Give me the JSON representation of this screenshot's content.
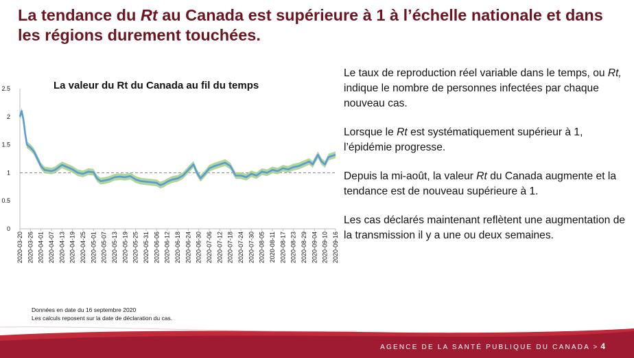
{
  "slide": {
    "title_pre": "La tendance du ",
    "title_em": "Rt",
    "title_post": " au Canada est supérieure à 1 à l’échelle nationale et dans les régions durement touchées.",
    "footer": "AGENCE DE LA SANTÉ PUBLIQUE DU CANADA",
    "footer_arrow": ">",
    "page": "4"
  },
  "bullets": [
    {
      "pre": "Le taux de reproduction réel variable dans le temps, ou ",
      "em": "Rt,",
      "post": " indique le nombre de personnes infectées par chaque nouveau cas."
    },
    {
      "pre": "Lorsque le ",
      "em": "Rt",
      "post": " est systématiquement supérieur à 1, l’épidémie progresse."
    },
    {
      "pre": "Depuis la mi-août, la valeur ",
      "em": "Rt",
      "post": " du Canada augmente et la tendance est de nouveau supérieure à 1."
    },
    {
      "pre": "Les cas déclarés maintenant reflètent une augmentation de la transmission il y a une ou deux semaines.",
      "em": "",
      "post": ""
    }
  ],
  "notes": {
    "line1": "Données en date du 16 septembre 2020",
    "line2": "Les calculs reposent sur la date de déclaration du cas."
  },
  "colors": {
    "title": "#6b1521",
    "line": "#5b9bd5",
    "band": "#a9d18e",
    "footer": "#9e1b32"
  },
  "chart_data": {
    "type": "line",
    "title": "La valeur du Rt du Canada au fil du temps",
    "ylim": [
      0,
      2.5
    ],
    "yticks": [
      0,
      0.5,
      1,
      1.5,
      2,
      2.5
    ],
    "ytick_labels": [
      "0",
      "0.5",
      "1",
      "1.5",
      "2",
      "2.5"
    ],
    "reference_line": 1,
    "x_start": "2020-03-20",
    "x_end": "2020-09-16",
    "xtick_labels": [
      "2020-03-20",
      "2020-03-26",
      "2020-04-01",
      "2020-04-07",
      "2020-04-13",
      "2020-04-19",
      "2020-04-25",
      "2020-05-01",
      "2020-05-07",
      "2020-05-13",
      "2020-05-19",
      "2020-05-25",
      "2020-05-31",
      "2020-06-06",
      "2020-06-12",
      "2020-06-18",
      "2020-06-24",
      "2020-06-30",
      "2020-07-06",
      "2020-07-12",
      "2020-07-18",
      "2020-07-24",
      "2020-07-30",
      "2020-08-05",
      "2020-08-11",
      "2020-08-17",
      "2020-08-23",
      "2020-08-29",
      "2020-09-04",
      "2020-09-10",
      "2020-09-16"
    ],
    "series": [
      {
        "values": [
          [
            "2020-03-20",
            2.0
          ],
          [
            "2020-03-21",
            2.1
          ],
          [
            "2020-03-22",
            1.95
          ],
          [
            "2020-03-23",
            1.7
          ],
          [
            "2020-03-24",
            1.5
          ],
          [
            "2020-03-26",
            1.45
          ],
          [
            "2020-03-28",
            1.38
          ],
          [
            "2020-03-30",
            1.25
          ],
          [
            "2020-04-01",
            1.12
          ],
          [
            "2020-04-03",
            1.05
          ],
          [
            "2020-04-07",
            1.03
          ],
          [
            "2020-04-09",
            1.05
          ],
          [
            "2020-04-13",
            1.14
          ],
          [
            "2020-04-16",
            1.1
          ],
          [
            "2020-04-19",
            1.06
          ],
          [
            "2020-04-22",
            1.0
          ],
          [
            "2020-04-25",
            0.98
          ],
          [
            "2020-04-28",
            1.02
          ],
          [
            "2020-05-01",
            1.01
          ],
          [
            "2020-05-03",
            0.9
          ],
          [
            "2020-05-05",
            0.85
          ],
          [
            "2020-05-07",
            0.86
          ],
          [
            "2020-05-10",
            0.88
          ],
          [
            "2020-05-13",
            0.92
          ],
          [
            "2020-05-16",
            0.93
          ],
          [
            "2020-05-19",
            0.92
          ],
          [
            "2020-05-22",
            0.94
          ],
          [
            "2020-05-25",
            0.88
          ],
          [
            "2020-05-28",
            0.85
          ],
          [
            "2020-05-31",
            0.84
          ],
          [
            "2020-06-03",
            0.83
          ],
          [
            "2020-06-06",
            0.82
          ],
          [
            "2020-06-08",
            0.78
          ],
          [
            "2020-06-10",
            0.8
          ],
          [
            "2020-06-12",
            0.84
          ],
          [
            "2020-06-15",
            0.88
          ],
          [
            "2020-06-18",
            0.9
          ],
          [
            "2020-06-21",
            0.95
          ],
          [
            "2020-06-24",
            1.05
          ],
          [
            "2020-06-27",
            1.15
          ],
          [
            "2020-06-29",
            1.0
          ],
          [
            "2020-07-01",
            0.9
          ],
          [
            "2020-07-04",
            1.0
          ],
          [
            "2020-07-06",
            1.08
          ],
          [
            "2020-07-09",
            1.12
          ],
          [
            "2020-07-12",
            1.15
          ],
          [
            "2020-07-15",
            1.18
          ],
          [
            "2020-07-18",
            1.12
          ],
          [
            "2020-07-21",
            0.95
          ],
          [
            "2020-07-24",
            0.95
          ],
          [
            "2020-07-27",
            0.92
          ],
          [
            "2020-07-30",
            0.98
          ],
          [
            "2020-08-02",
            0.95
          ],
          [
            "2020-08-05",
            1.02
          ],
          [
            "2020-08-08",
            1.0
          ],
          [
            "2020-08-11",
            1.05
          ],
          [
            "2020-08-14",
            1.03
          ],
          [
            "2020-08-17",
            1.08
          ],
          [
            "2020-08-20",
            1.06
          ],
          [
            "2020-08-23",
            1.1
          ],
          [
            "2020-08-26",
            1.12
          ],
          [
            "2020-08-29",
            1.16
          ],
          [
            "2020-09-01",
            1.2
          ],
          [
            "2020-09-03",
            1.15
          ],
          [
            "2020-09-06",
            1.32
          ],
          [
            "2020-09-08",
            1.2
          ],
          [
            "2020-09-10",
            1.15
          ],
          [
            "2020-09-12",
            1.28
          ],
          [
            "2020-09-14",
            1.3
          ],
          [
            "2020-09-16",
            1.32
          ]
        ]
      }
    ]
  }
}
